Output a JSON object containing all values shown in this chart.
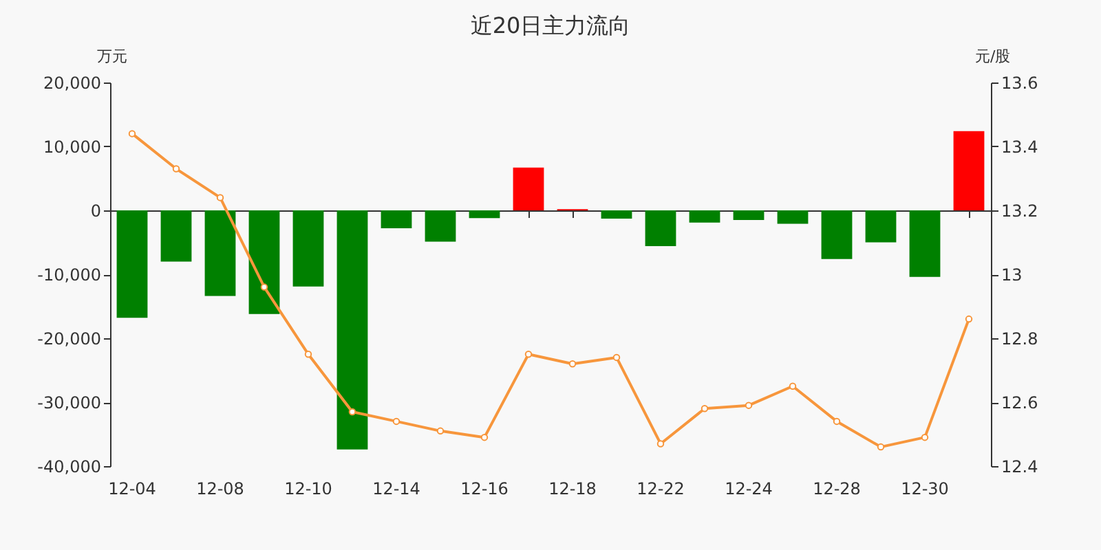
{
  "chart_data": {
    "type": "bar",
    "title": "近20日主力流向",
    "ylabel": "万元",
    "y2label": "元/股",
    "categories": [
      "12-04",
      null,
      "12-08",
      null,
      "12-10",
      null,
      "12-14",
      null,
      "12-16",
      null,
      "12-18",
      null,
      "12-22",
      null,
      "12-24",
      null,
      "12-28",
      null,
      "12-30",
      null
    ],
    "series": [
      {
        "colors": [
          "#008000",
          "#008000",
          "#008000",
          "#008000",
          "#008000",
          "#008000",
          "#008000",
          "#008000",
          "#008000",
          "#ff0000",
          "#ff0000",
          "#008000",
          "#008000",
          "#008000",
          "#008000",
          "#008000",
          "#008000",
          "#008000",
          "#008000",
          "#ff0000"
        ],
        "values": [
          -16800,
          -8000,
          -13400,
          -16200,
          -11900,
          -37400,
          -2800,
          -4900,
          -1200,
          6700,
          200,
          -1300,
          -5600,
          -1900,
          -1500,
          -2100,
          -7600,
          -5000,
          -10400,
          12400
        ]
      },
      {
        "type": "line",
        "axis": "y2",
        "color": "#f7963c",
        "marker": "circle",
        "values": [
          13.44,
          13.33,
          13.24,
          12.96,
          12.75,
          12.57,
          12.54,
          12.51,
          12.49,
          12.75,
          12.72,
          12.74,
          12.47,
          12.58,
          12.59,
          12.65,
          12.54,
          12.46,
          12.49,
          12.86
        ]
      }
    ],
    "ylim": [
      -40000,
      20000
    ],
    "yticks": [
      {
        "value": 20000,
        "label": "20,000"
      },
      {
        "value": 10000,
        "label": "10,000"
      },
      0,
      {
        "value": -10000,
        "label": "-10,000"
      },
      {
        "value": -20000,
        "label": "-20,000"
      },
      {
        "value": -30000,
        "label": "-30,000"
      },
      {
        "value": -40000,
        "label": "-40,000"
      }
    ],
    "y2lim": [
      12.4,
      13.6
    ],
    "y2ticks": [
      12.4,
      12.6,
      12.8,
      {
        "value": 13,
        "label": "13"
      },
      13.2,
      13.4,
      13.6
    ],
    "tick_labels": "xy"
  }
}
